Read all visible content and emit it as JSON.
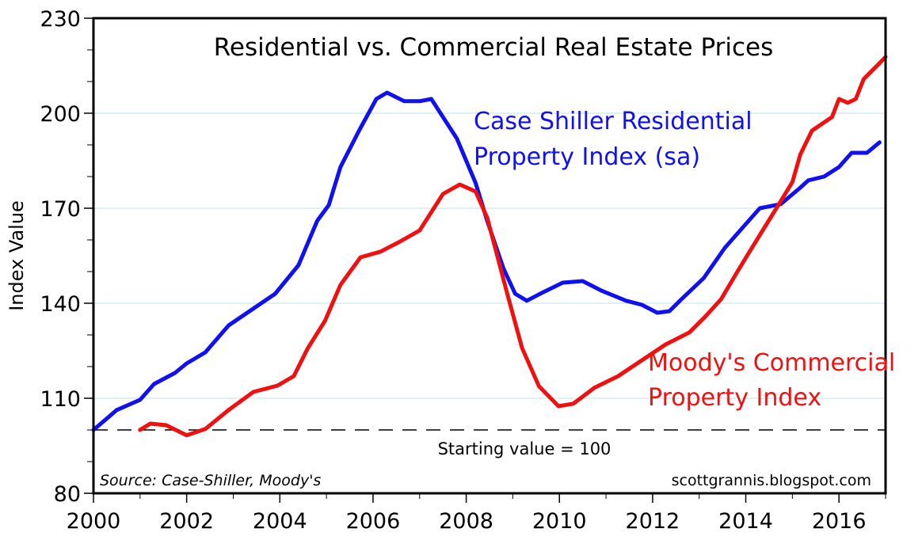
{
  "chart_data": {
    "type": "line",
    "title": "Residential vs. Commercial Real Estate Prices",
    "xlabel": "",
    "ylabel": "Index Value",
    "xlim": [
      2000,
      2017
    ],
    "ylim": [
      80,
      230
    ],
    "x_ticks": [
      2000,
      2002,
      2004,
      2006,
      2008,
      2010,
      2012,
      2014,
      2016
    ],
    "y_ticks": [
      80,
      110,
      140,
      170,
      200,
      230
    ],
    "grid": "horizontal",
    "colors": {
      "residential": "#1010f0",
      "commercial": "#f01010",
      "grid": "#bfe0ea"
    },
    "reference_line": {
      "value": 100,
      "label": "Starting value = 100"
    },
    "source_note": "Source: Case-Shiller, Moody's",
    "watermark": "scottgrannis.blogspot.com",
    "series": [
      {
        "name": "Case Shiller Residential Property Index (sa)",
        "label_lines": [
          "Case Shiller Residential",
          "Property Index (sa)"
        ],
        "color": "#1010f0",
        "x": [
          2000.0,
          2000.5,
          2001.0,
          2001.3,
          2001.75,
          2002.0,
          2002.4,
          2002.9,
          2003.4,
          2003.9,
          2004.4,
          2004.8,
          2005.05,
          2005.3,
          2005.7,
          2006.07,
          2006.3,
          2006.67,
          2007.0,
          2007.25,
          2007.8,
          2008.2,
          2008.45,
          2008.8,
          2009.05,
          2009.3,
          2009.56,
          2010.07,
          2010.5,
          2010.9,
          2011.43,
          2011.77,
          2012.1,
          2012.36,
          2012.6,
          2013.1,
          2013.55,
          2014.0,
          2014.3,
          2014.75,
          2015.17,
          2015.34,
          2015.68,
          2016.0,
          2016.27,
          2016.6,
          2016.87
        ],
        "y": [
          100,
          106.3,
          109.5,
          114.5,
          118,
          121,
          124.5,
          133,
          138,
          143,
          152,
          166,
          171,
          183,
          194.5,
          204.5,
          206.5,
          203.8,
          203.8,
          204.5,
          192,
          178,
          166,
          151,
          143,
          140.8,
          142.8,
          146.5,
          147,
          144,
          140.8,
          139.5,
          137,
          137.5,
          141,
          148,
          157.5,
          165,
          170,
          171.3,
          176.5,
          178.8,
          180,
          183,
          187.5,
          187.5,
          190.8
        ]
      },
      {
        "name": "Moody's Commercial Property Index",
        "label_lines": [
          "Moody's Commercial",
          "Property Index"
        ],
        "color": "#f01010",
        "x": [
          2001.0,
          2001.22,
          2001.56,
          2002.0,
          2002.4,
          2002.9,
          2003.43,
          2003.95,
          2004.3,
          2004.6,
          2004.97,
          2005.3,
          2005.73,
          2006.16,
          2006.58,
          2007.0,
          2007.5,
          2007.86,
          2008.2,
          2008.45,
          2008.88,
          2009.2,
          2009.56,
          2009.98,
          2010.3,
          2010.75,
          2011.26,
          2011.77,
          2012.28,
          2012.79,
          2013.13,
          2013.47,
          2013.8,
          2014.06,
          2014.32,
          2014.74,
          2015.0,
          2015.17,
          2015.42,
          2015.85,
          2016.0,
          2016.19,
          2016.36,
          2016.53,
          2016.87,
          2017.0
        ],
        "y": [
          100,
          102,
          101.5,
          98.3,
          100.3,
          106.3,
          112,
          114,
          117,
          125.8,
          134.5,
          145.8,
          154.5,
          156.3,
          159.5,
          163,
          174.5,
          177.5,
          175.3,
          167,
          143,
          125.8,
          113.8,
          107.5,
          108.3,
          113.3,
          117,
          122,
          127,
          130.8,
          135.8,
          141.3,
          149.5,
          155.8,
          162,
          172,
          178.3,
          187,
          194.5,
          198.8,
          204.5,
          203.3,
          204.5,
          210.8,
          215.8,
          217.8
        ]
      }
    ]
  }
}
